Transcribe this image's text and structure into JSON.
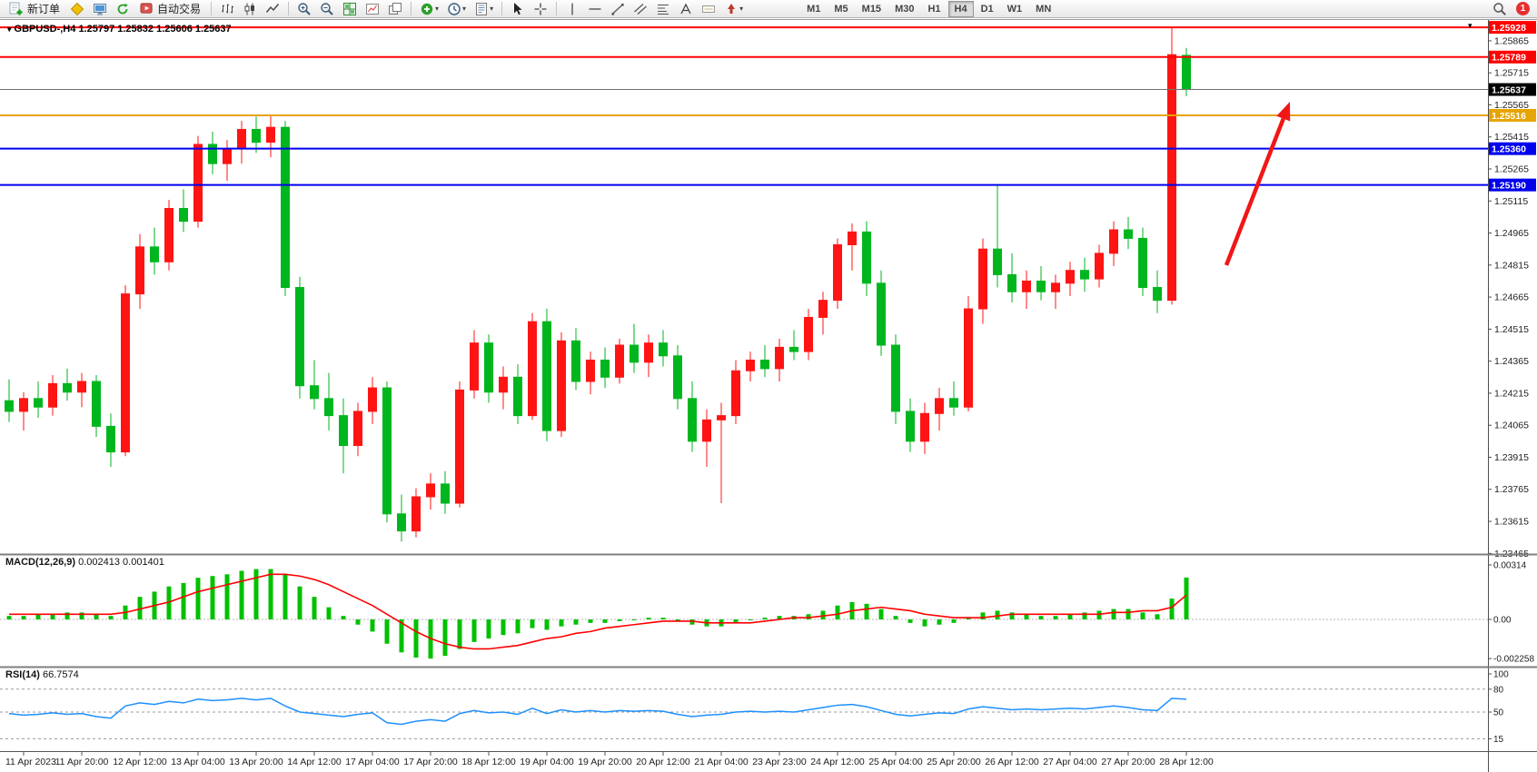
{
  "toolbar": {
    "new_order": "新订单",
    "autotrading": "自动交易",
    "timeframes": [
      "M1",
      "M5",
      "M15",
      "M30",
      "H1",
      "H4",
      "D1",
      "W1",
      "MN"
    ],
    "active_timeframe": "H4",
    "notification_count": "1"
  },
  "main_chart": {
    "symbol_title": "GBPUSD-,H4",
    "ohlc": "1.25797 1.25832 1.25606 1.25637"
  },
  "chart_data": {
    "type": "candlestick",
    "symbol": "GBPUSD-",
    "timeframe": "H4",
    "up_color": "#ff1414",
    "down_color": "#00b61e",
    "current_ohlc": {
      "open": "1.25797",
      "high": "1.25832",
      "low": "1.25606",
      "close": "1.25637"
    },
    "y_ticks": [
      "1.25865",
      "1.25715",
      "1.25565",
      "1.25415",
      "1.25265",
      "1.25115",
      "1.24965",
      "1.24815",
      "1.24665",
      "1.24515",
      "1.24365",
      "1.24215",
      "1.24065",
      "1.23915",
      "1.23765",
      "1.23615",
      "1.23465"
    ],
    "time_labels": [
      "11 Apr 2023",
      "11 Apr 20:00",
      "12 Apr 12:00",
      "13 Apr 04:00",
      "13 Apr 20:00",
      "14 Apr 12:00",
      "17 Apr 04:00",
      "17 Apr 20:00",
      "18 Apr 12:00",
      "19 Apr 04:00",
      "19 Apr 20:00",
      "20 Apr 12:00",
      "21 Apr 04:00",
      "23 Apr 23:00",
      "24 Apr 12:00",
      "25 Apr 04:00",
      "25 Apr 20:00",
      "26 Apr 12:00",
      "27 Apr 04:00",
      "27 Apr 20:00",
      "28 Apr 12:00"
    ],
    "price_lines": [
      {
        "label": "1.25928",
        "price": 1.25928,
        "color": "#ff0000",
        "width": 2,
        "bid": false
      },
      {
        "label": "1.25789",
        "price": 1.25789,
        "color": "#ff0000",
        "width": 2,
        "bid": false
      },
      {
        "label": "1.25637",
        "price": 1.25637,
        "color": "#000000",
        "width": 1,
        "bid": true
      },
      {
        "label": "1.25516",
        "price": 1.25516,
        "color": "#e6a400",
        "width": 2,
        "bid": false
      },
      {
        "label": "1.25360",
        "price": 1.2536,
        "color": "#0000ee",
        "width": 2,
        "bid": false
      },
      {
        "label": "1.25190",
        "price": 1.2519,
        "color": "#0000ee",
        "width": 2,
        "bid": false
      }
    ],
    "candles": [
      [
        1.2418,
        1.2428,
        1.2408,
        1.2413
      ],
      [
        1.2413,
        1.2422,
        1.2404,
        1.2419
      ],
      [
        1.2419,
        1.2427,
        1.241,
        1.2415
      ],
      [
        1.2415,
        1.243,
        1.2411,
        1.2426
      ],
      [
        1.2426,
        1.2433,
        1.2418,
        1.2422
      ],
      [
        1.2422,
        1.2431,
        1.2415,
        1.2427
      ],
      [
        1.2427,
        1.243,
        1.2401,
        1.2406
      ],
      [
        1.2406,
        1.2412,
        1.2387,
        1.2394
      ],
      [
        1.2394,
        1.2472,
        1.2392,
        1.2468
      ],
      [
        1.2468,
        1.2496,
        1.2461,
        1.249
      ],
      [
        1.249,
        1.2499,
        1.2477,
        1.2483
      ],
      [
        1.2483,
        1.2512,
        1.2479,
        1.2508
      ],
      [
        1.2508,
        1.2517,
        1.2497,
        1.2502
      ],
      [
        1.2502,
        1.2542,
        1.2499,
        1.2538
      ],
      [
        1.2538,
        1.2544,
        1.2524,
        1.2529
      ],
      [
        1.2529,
        1.254,
        1.2521,
        1.2536
      ],
      [
        1.2536,
        1.2549,
        1.2529,
        1.2545
      ],
      [
        1.2545,
        1.2551,
        1.2534,
        1.2539
      ],
      [
        1.2539,
        1.25516,
        1.2532,
        1.2546
      ],
      [
        1.2546,
        1.2549,
        1.2467,
        1.2471
      ],
      [
        1.2471,
        1.2476,
        1.2419,
        1.2425
      ],
      [
        1.2425,
        1.2437,
        1.2414,
        1.2419
      ],
      [
        1.2419,
        1.2431,
        1.2404,
        1.2411
      ],
      [
        1.2411,
        1.2419,
        1.2384,
        1.2397
      ],
      [
        1.2397,
        1.2417,
        1.2392,
        1.2413
      ],
      [
        1.2413,
        1.2429,
        1.2407,
        1.2424
      ],
      [
        1.2424,
        1.2427,
        1.2361,
        1.2365
      ],
      [
        1.2365,
        1.2374,
        1.2352,
        1.2357
      ],
      [
        1.2357,
        1.2377,
        1.2354,
        1.2373
      ],
      [
        1.2373,
        1.2384,
        1.2367,
        1.2379
      ],
      [
        1.2379,
        1.2385,
        1.2365,
        1.237
      ],
      [
        1.237,
        1.2427,
        1.2368,
        1.2423
      ],
      [
        1.2423,
        1.2451,
        1.2419,
        1.2445
      ],
      [
        1.2445,
        1.2449,
        1.2417,
        1.2422
      ],
      [
        1.2422,
        1.2434,
        1.2414,
        1.2429
      ],
      [
        1.2429,
        1.2435,
        1.2407,
        1.2411
      ],
      [
        1.2411,
        1.2459,
        1.2409,
        1.2455
      ],
      [
        1.2455,
        1.2461,
        1.2399,
        1.2404
      ],
      [
        1.2404,
        1.245,
        1.2401,
        1.2446
      ],
      [
        1.2446,
        1.2452,
        1.2423,
        1.2427
      ],
      [
        1.2427,
        1.2441,
        1.2421,
        1.2437
      ],
      [
        1.2437,
        1.2443,
        1.2424,
        1.2429
      ],
      [
        1.2429,
        1.2447,
        1.2426,
        1.2444
      ],
      [
        1.2444,
        1.2454,
        1.2431,
        1.2436
      ],
      [
        1.2436,
        1.2449,
        1.2429,
        1.2445
      ],
      [
        1.2445,
        1.2451,
        1.2434,
        1.2439
      ],
      [
        1.2439,
        1.2444,
        1.2414,
        1.2419
      ],
      [
        1.2419,
        1.2427,
        1.2394,
        1.2399
      ],
      [
        1.2399,
        1.2414,
        1.2387,
        1.2409
      ],
      [
        1.2409,
        1.2417,
        1.237,
        1.2411
      ],
      [
        1.2411,
        1.2437,
        1.2407,
        1.2432
      ],
      [
        1.2432,
        1.2441,
        1.2427,
        1.2437
      ],
      [
        1.2437,
        1.2444,
        1.2429,
        1.2433
      ],
      [
        1.2433,
        1.2447,
        1.2427,
        1.2443
      ],
      [
        1.2443,
        1.2451,
        1.2437,
        1.2441
      ],
      [
        1.2441,
        1.2461,
        1.2437,
        1.2457
      ],
      [
        1.2457,
        1.2469,
        1.2449,
        1.2465
      ],
      [
        1.2465,
        1.2494,
        1.2461,
        1.2491
      ],
      [
        1.2491,
        1.2501,
        1.2479,
        1.2497
      ],
      [
        1.2497,
        1.2502,
        1.2467,
        1.2473
      ],
      [
        1.2473,
        1.2479,
        1.2439,
        1.2444
      ],
      [
        1.2444,
        1.2449,
        1.2407,
        1.2413
      ],
      [
        1.2413,
        1.2419,
        1.2394,
        1.2399
      ],
      [
        1.2399,
        1.2417,
        1.2393,
        1.2412
      ],
      [
        1.2412,
        1.2424,
        1.2404,
        1.2419
      ],
      [
        1.2419,
        1.2427,
        1.2411,
        1.2415
      ],
      [
        1.2415,
        1.2467,
        1.2413,
        1.2461
      ],
      [
        1.2461,
        1.2494,
        1.2454,
        1.2489
      ],
      [
        1.2489,
        1.2519,
        1.2471,
        1.2477
      ],
      [
        1.2477,
        1.2487,
        1.2464,
        1.2469
      ],
      [
        1.2469,
        1.2479,
        1.2461,
        1.2474
      ],
      [
        1.2474,
        1.2481,
        1.2465,
        1.2469
      ],
      [
        1.2469,
        1.2477,
        1.2461,
        1.2473
      ],
      [
        1.2473,
        1.2483,
        1.2467,
        1.2479
      ],
      [
        1.2479,
        1.2485,
        1.2469,
        1.2475
      ],
      [
        1.2475,
        1.2491,
        1.2471,
        1.2487
      ],
      [
        1.2487,
        1.2502,
        1.2481,
        1.2498
      ],
      [
        1.2498,
        1.2504,
        1.2489,
        1.2494
      ],
      [
        1.2494,
        1.2499,
        1.2467,
        1.2471
      ],
      [
        1.2471,
        1.2479,
        1.2459,
        1.2465
      ],
      [
        1.2465,
        1.25928,
        1.2463,
        1.258
      ],
      [
        1.25797,
        1.25832,
        1.25606,
        1.25637
      ]
    ],
    "macd": {
      "label": "MACD(12,26,9)",
      "values_text": "0.002413 0.001401",
      "histogram_color": "#00c000",
      "signal_color": "#ff0000",
      "scale": [
        {
          "v": 0.00314,
          "label": "0.00314"
        },
        {
          "v": 0,
          "label": "0.00"
        },
        {
          "v": -0.002258,
          "label": "-0.002258"
        }
      ],
      "histogram": [
        0.0002,
        0.0002,
        0.0003,
        0.0003,
        0.0004,
        0.0004,
        0.0003,
        0.0002,
        0.0008,
        0.0013,
        0.0016,
        0.0019,
        0.0021,
        0.0024,
        0.0025,
        0.0026,
        0.0028,
        0.0029,
        0.0029,
        0.0026,
        0.0019,
        0.0013,
        0.0007,
        0.0002,
        -0.0003,
        -0.0007,
        -0.0014,
        -0.0019,
        -0.0022,
        -0.00226,
        -0.0021,
        -0.0017,
        -0.0013,
        -0.0011,
        -0.0009,
        -0.0008,
        -0.0005,
        -0.0006,
        -0.0004,
        -0.0003,
        -0.0002,
        -0.0002,
        -0.0001,
        0.0,
        0.0001,
        0.0001,
        -0.0001,
        -0.0003,
        -0.0004,
        -0.0004,
        -0.0002,
        0.0,
        0.0001,
        0.0002,
        0.0002,
        0.0003,
        0.0005,
        0.0008,
        0.001,
        0.0009,
        0.0006,
        0.0002,
        -0.0002,
        -0.0004,
        -0.0003,
        -0.0002,
        0.0001,
        0.0004,
        0.0005,
        0.0004,
        0.0003,
        0.0002,
        0.0002,
        0.0003,
        0.0004,
        0.0005,
        0.0006,
        0.0006,
        0.0004,
        0.0003,
        0.0012,
        0.002413
      ],
      "signal": [
        0.0003,
        0.0003,
        0.0003,
        0.0003,
        0.0003,
        0.0003,
        0.0003,
        0.0003,
        0.0004,
        0.0006,
        0.0008,
        0.001,
        0.0013,
        0.0016,
        0.0018,
        0.002,
        0.0022,
        0.0024,
        0.0026,
        0.0026,
        0.0025,
        0.0023,
        0.002,
        0.0016,
        0.0012,
        0.0008,
        0.0003,
        -0.0002,
        -0.0007,
        -0.0011,
        -0.0014,
        -0.0016,
        -0.0017,
        -0.0017,
        -0.0016,
        -0.0015,
        -0.0013,
        -0.0011,
        -0.001,
        -0.0008,
        -0.0007,
        -0.0005,
        -0.0004,
        -0.0003,
        -0.0002,
        -0.0001,
        -0.0001,
        -0.0001,
        -0.0002,
        -0.0002,
        -0.0002,
        -0.0002,
        -0.0001,
        0.0,
        0.0001,
        0.0001,
        0.0002,
        0.0003,
        0.0005,
        0.0006,
        0.0007,
        0.0006,
        0.0005,
        0.0003,
        0.0002,
        0.0001,
        0.0001,
        0.0001,
        0.0002,
        0.0003,
        0.0003,
        0.0003,
        0.0003,
        0.0003,
        0.0003,
        0.0003,
        0.0004,
        0.0004,
        0.0005,
        0.0005,
        0.0007,
        0.001401
      ]
    },
    "rsi": {
      "label": "RSI(14)",
      "value_text": "66.7574",
      "color": "#1e90ff",
      "levels": [
        {
          "v": 100,
          "label": "100",
          "dashed": false
        },
        {
          "v": 80,
          "label": "80",
          "dashed": true
        },
        {
          "v": 50,
          "label": "50",
          "dashed": true
        },
        {
          "v": 15,
          "label": "15",
          "dashed": true
        }
      ],
      "values": [
        48,
        46,
        47,
        49,
        47,
        48,
        44,
        42,
        58,
        62,
        60,
        64,
        62,
        67,
        65,
        66,
        68,
        66,
        68,
        58,
        50,
        48,
        46,
        44,
        47,
        49,
        36,
        34,
        38,
        40,
        38,
        48,
        52,
        49,
        50,
        47,
        55,
        48,
        53,
        50,
        52,
        50,
        52,
        51,
        52,
        51,
        47,
        44,
        46,
        47,
        50,
        51,
        50,
        51,
        50,
        53,
        56,
        59,
        60,
        57,
        52,
        47,
        45,
        47,
        49,
        48,
        54,
        57,
        55,
        53,
        54,
        53,
        54,
        55,
        54,
        56,
        58,
        56,
        53,
        52,
        68,
        66.7574
      ]
    },
    "annotation_arrow": {
      "color": "#f21616",
      "direction": "up"
    }
  }
}
